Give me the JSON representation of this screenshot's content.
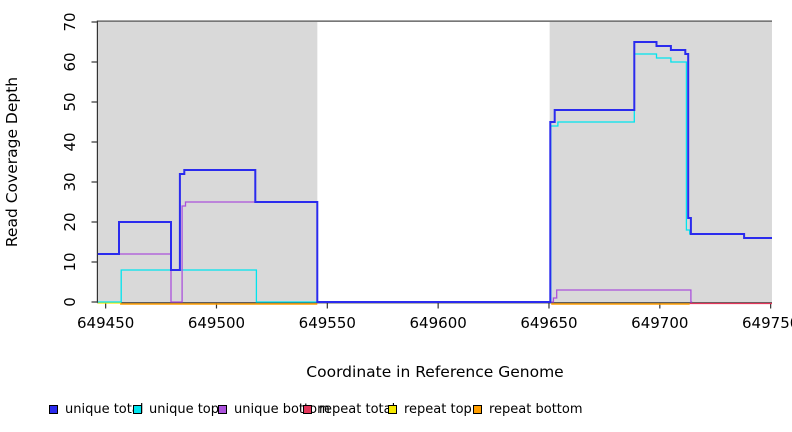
{
  "figure": {
    "xlabel": "Coordinate in Reference Genome",
    "ylabel": "Read Coverage Depth"
  },
  "chart_data": {
    "type": "line",
    "step": true,
    "title": "",
    "xlabel": "Coordinate in Reference Genome",
    "ylabel": "Read Coverage Depth",
    "xlim": [
      649446.5,
      649750.6
    ],
    "ylim": [
      0,
      70
    ],
    "x_ticks": [
      649450,
      649500,
      649550,
      649600,
      649650,
      649700,
      649750
    ],
    "y_ticks": [
      0,
      10,
      20,
      30,
      40,
      50,
      60,
      70
    ],
    "grid": false,
    "legend_position": "bottom",
    "background_shading": {
      "color": "#d9d9d9",
      "regions": [
        [
          649446.5,
          649545.5
        ],
        [
          649650.3,
          649750.6
        ]
      ]
    },
    "top_border_y": 70,
    "series": [
      {
        "id": "repeat_top",
        "name": "repeat top",
        "color": "#F5E800",
        "width": 1.2,
        "segments": [
          {
            "points": [
              [
                649446.5,
                0
              ]
            ],
            "end_x": 649457
          }
        ]
      },
      {
        "id": "repeat_bottom",
        "name": "repeat bottom",
        "color": "#FF9E00",
        "width": 1.5,
        "segments": [
          {
            "points": [
              [
                649456.5,
                0
              ]
            ],
            "end_x": 649545.5
          },
          {
            "points": [
              [
                649651,
                0
              ]
            ],
            "end_x": 649713.5
          }
        ]
      },
      {
        "id": "repeat_total",
        "name": "repeat total",
        "color": "#E2355A",
        "width": 1.2,
        "segments": [
          {
            "points": [
              [
                649713.5,
                0
              ]
            ],
            "end_x": 649750.6
          }
        ]
      },
      {
        "id": "unique_top",
        "name": "unique top",
        "color": "#00E4EE",
        "width": 1.3,
        "segments": [
          {
            "points": [
              [
                649446.5,
                0
              ],
              [
                649457,
                8
              ],
              [
                649518,
                0
              ],
              [
                649650.8,
                44
              ],
              [
                649654,
                45
              ],
              [
                649688.5,
                62
              ],
              [
                649698.5,
                61
              ],
              [
                649705,
                60
              ],
              [
                649712,
                18
              ],
              [
                649713.5,
                17
              ],
              [
                649738,
                16
              ]
            ],
            "end_x": 649750.6
          }
        ]
      },
      {
        "id": "unique_bottom",
        "name": "unique bottom",
        "color": "#AB52DC",
        "width": 1.3,
        "segments": [
          {
            "points": [
              [
                649446.5,
                12
              ],
              [
                649479.5,
                0
              ],
              [
                649484.5,
                24
              ],
              [
                649486,
                25
              ],
              [
                649545.5,
                0
              ],
              [
                649652,
                1
              ],
              [
                649653.5,
                3
              ],
              [
                649714,
                0
              ]
            ],
            "end_x": 649714.6
          }
        ]
      },
      {
        "id": "unique_total",
        "name": "unique total",
        "color": "#2B2BEE",
        "width": 2,
        "segments": [
          {
            "points": [
              [
                649446.5,
                12
              ],
              [
                649456,
                20
              ],
              [
                649479.5,
                8
              ],
              [
                649483.5,
                32
              ],
              [
                649485.5,
                33
              ],
              [
                649517.5,
                25
              ],
              [
                649545.5,
                0
              ],
              [
                649650.6,
                45
              ],
              [
                649652.6,
                48
              ],
              [
                649688.5,
                65
              ],
              [
                649698.5,
                64
              ],
              [
                649705,
                63
              ],
              [
                649711.5,
                62
              ],
              [
                649712.8,
                21
              ],
              [
                649714,
                17
              ],
              [
                649738,
                16
              ]
            ],
            "end_x": 649750.6
          }
        ]
      }
    ],
    "legend": [
      {
        "label": "unique total",
        "color": "#2B2BEE"
      },
      {
        "label": "unique top",
        "color": "#00E4EE"
      },
      {
        "label": "unique bottom",
        "color": "#AB52DC"
      },
      {
        "label": "repeat total",
        "color": "#E2355A"
      },
      {
        "label": "repeat top",
        "color": "#F5E800"
      },
      {
        "label": "repeat bottom",
        "color": "#FF9E00"
      }
    ]
  }
}
